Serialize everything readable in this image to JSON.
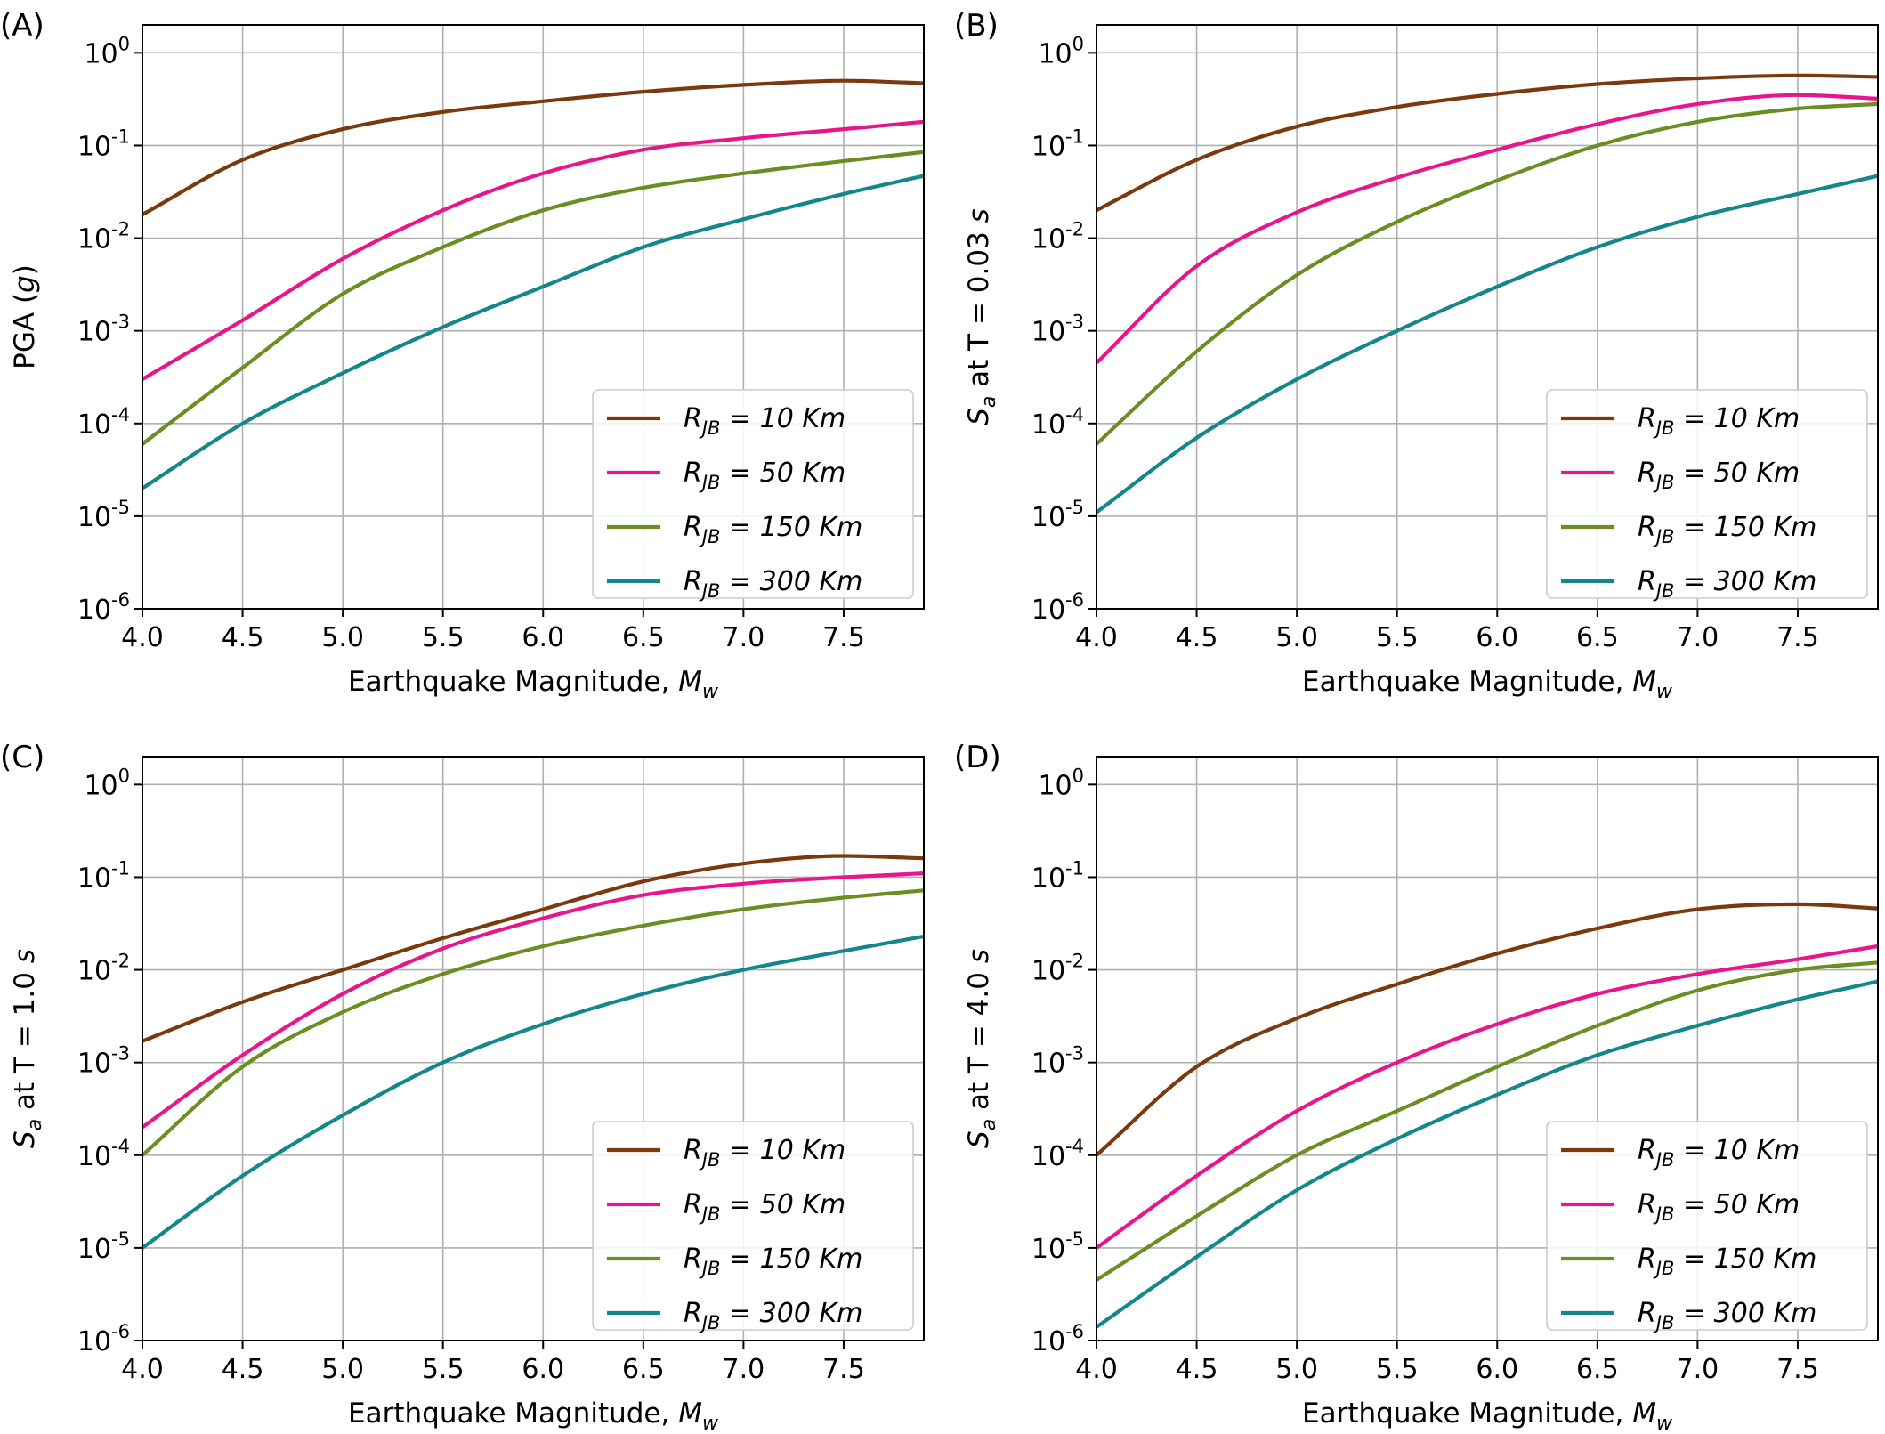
{
  "figure": {
    "xlabel_text": "Earthquake Magnitude, ",
    "xlabel_math": "M",
    "xlabel_sub": "w",
    "legend_prefix": "R",
    "legend_sub": "JB",
    "legend_unit": "Km",
    "colors": {
      "10": "#7b3a0e",
      "50": "#e8168c",
      "150": "#6b8e23",
      "300": "#13878a"
    }
  },
  "chart_data": [
    {
      "panel": "(A)",
      "type": "line",
      "ylabel_parts": [
        {
          "t": "PGA ("
        },
        {
          "t": "g",
          "it": true
        },
        {
          "t": ")"
        }
      ],
      "xlabel": "Earthquake Magnitude, Mw",
      "xlim": [
        4.0,
        7.9
      ],
      "ylim": [
        1e-06,
        2
      ],
      "yscale": "log",
      "xticks": [
        "4.0",
        "4.5",
        "5.0",
        "5.5",
        "6.0",
        "6.5",
        "7.0",
        "7.5"
      ],
      "yticks": [
        "10^0",
        "10^-1",
        "10^-2",
        "10^-3",
        "10^-4",
        "10^-5",
        "10^-6"
      ],
      "grid": true,
      "legend_placement": "lower-right",
      "x": [
        4.0,
        4.5,
        5.0,
        5.5,
        6.0,
        6.5,
        7.0,
        7.5,
        7.9
      ],
      "series": [
        {
          "name": "R_JB = 10 Km",
          "dist": "10",
          "values": [
            0.018,
            0.07,
            0.15,
            0.23,
            0.3,
            0.38,
            0.45,
            0.5,
            0.47
          ]
        },
        {
          "name": "R_JB = 50 Km",
          "dist": "50",
          "values": [
            0.0003,
            0.0013,
            0.006,
            0.02,
            0.05,
            0.09,
            0.12,
            0.15,
            0.18
          ]
        },
        {
          "name": "R_JB = 150 Km",
          "dist": "150",
          "values": [
            6e-05,
            0.0004,
            0.0025,
            0.008,
            0.02,
            0.035,
            0.05,
            0.068,
            0.085
          ]
        },
        {
          "name": "R_JB = 300 Km",
          "dist": "300",
          "values": [
            2e-05,
            0.0001,
            0.00035,
            0.0011,
            0.003,
            0.008,
            0.016,
            0.03,
            0.047
          ]
        }
      ]
    },
    {
      "panel": "(B)",
      "type": "line",
      "ylabel_parts": [
        {
          "t": "S",
          "it": true
        },
        {
          "t": "a",
          "it": true,
          "sub": true
        },
        {
          "t": " at T = 0.03 "
        },
        {
          "t": "s",
          "it": true
        }
      ],
      "xlabel": "Earthquake Magnitude, Mw",
      "xlim": [
        4.0,
        7.9
      ],
      "ylim": [
        1e-06,
        2
      ],
      "yscale": "log",
      "xticks": [
        "4.0",
        "4.5",
        "5.0",
        "5.5",
        "6.0",
        "6.5",
        "7.0",
        "7.5"
      ],
      "yticks": [
        "10^0",
        "10^-1",
        "10^-2",
        "10^-3",
        "10^-4",
        "10^-5",
        "10^-6"
      ],
      "grid": true,
      "legend_placement": "lower-right",
      "x": [
        4.0,
        4.5,
        5.0,
        5.5,
        6.0,
        6.5,
        7.0,
        7.5,
        7.9
      ],
      "series": [
        {
          "name": "R_JB = 10 Km",
          "dist": "10",
          "values": [
            0.02,
            0.07,
            0.16,
            0.26,
            0.36,
            0.46,
            0.53,
            0.57,
            0.55
          ]
        },
        {
          "name": "R_JB = 50 Km",
          "dist": "50",
          "values": [
            0.00045,
            0.005,
            0.019,
            0.045,
            0.09,
            0.17,
            0.28,
            0.35,
            0.32
          ]
        },
        {
          "name": "R_JB = 150 Km",
          "dist": "150",
          "values": [
            6e-05,
            0.0006,
            0.004,
            0.015,
            0.042,
            0.1,
            0.18,
            0.25,
            0.28
          ]
        },
        {
          "name": "R_JB = 300 Km",
          "dist": "300",
          "values": [
            1.1e-05,
            7e-05,
            0.0003,
            0.001,
            0.003,
            0.008,
            0.017,
            0.03,
            0.047
          ]
        }
      ]
    },
    {
      "panel": "(C)",
      "type": "line",
      "ylabel_parts": [
        {
          "t": "S",
          "it": true
        },
        {
          "t": "a",
          "it": true,
          "sub": true
        },
        {
          "t": " at T = 1.0 "
        },
        {
          "t": "s",
          "it": true
        }
      ],
      "xlabel": "Earthquake Magnitude, Mw",
      "xlim": [
        4.0,
        7.9
      ],
      "ylim": [
        1e-06,
        2
      ],
      "yscale": "log",
      "xticks": [
        "4.0",
        "4.5",
        "5.0",
        "5.5",
        "6.0",
        "6.5",
        "7.0",
        "7.5"
      ],
      "yticks": [
        "10^0",
        "10^-1",
        "10^-2",
        "10^-3",
        "10^-4",
        "10^-5",
        "10^-6"
      ],
      "grid": true,
      "legend_placement": "lower-right",
      "x": [
        4.0,
        4.5,
        5.0,
        5.5,
        6.0,
        6.5,
        7.0,
        7.5,
        7.9
      ],
      "series": [
        {
          "name": "R_JB = 10 Km",
          "dist": "10",
          "values": [
            0.0017,
            0.0045,
            0.01,
            0.022,
            0.045,
            0.09,
            0.14,
            0.17,
            0.16
          ]
        },
        {
          "name": "R_JB = 50 Km",
          "dist": "50",
          "values": [
            0.0002,
            0.0012,
            0.0055,
            0.017,
            0.036,
            0.064,
            0.085,
            0.1,
            0.11
          ]
        },
        {
          "name": "R_JB = 150 Km",
          "dist": "150",
          "values": [
            0.0001,
            0.0009,
            0.0035,
            0.009,
            0.018,
            0.03,
            0.045,
            0.06,
            0.072
          ]
        },
        {
          "name": "R_JB = 300 Km",
          "dist": "300",
          "values": [
            1e-05,
            6e-05,
            0.00027,
            0.001,
            0.0026,
            0.0055,
            0.01,
            0.016,
            0.023
          ]
        }
      ]
    },
    {
      "panel": "(D)",
      "type": "line",
      "ylabel_parts": [
        {
          "t": "S",
          "it": true
        },
        {
          "t": "a",
          "it": true,
          "sub": true
        },
        {
          "t": " at T = 4.0 "
        },
        {
          "t": "s",
          "it": true
        }
      ],
      "xlabel": "Earthquake Magnitude, Mw",
      "xlim": [
        4.0,
        7.9
      ],
      "ylim": [
        1e-06,
        2
      ],
      "yscale": "log",
      "xticks": [
        "4.0",
        "4.5",
        "5.0",
        "5.5",
        "6.0",
        "6.5",
        "7.0",
        "7.5"
      ],
      "yticks": [
        "10^0",
        "10^-1",
        "10^-2",
        "10^-3",
        "10^-4",
        "10^-5",
        "10^-6"
      ],
      "grid": true,
      "legend_placement": "lower-right",
      "x": [
        4.0,
        4.5,
        5.0,
        5.5,
        6.0,
        6.5,
        7.0,
        7.5,
        7.9
      ],
      "series": [
        {
          "name": "R_JB = 10 Km",
          "dist": "10",
          "values": [
            0.0001,
            0.0009,
            0.003,
            0.007,
            0.015,
            0.028,
            0.045,
            0.051,
            0.046
          ]
        },
        {
          "name": "R_JB = 50 Km",
          "dist": "50",
          "values": [
            1e-05,
            6e-05,
            0.0003,
            0.001,
            0.0026,
            0.0055,
            0.009,
            0.013,
            0.018
          ]
        },
        {
          "name": "R_JB = 150 Km",
          "dist": "150",
          "values": [
            4.5e-06,
            2.2e-05,
            0.0001,
            0.0003,
            0.0009,
            0.0025,
            0.006,
            0.01,
            0.012
          ]
        },
        {
          "name": "R_JB = 300 Km",
          "dist": "300",
          "values": [
            1.4e-06,
            8e-06,
            4.2e-05,
            0.00015,
            0.00045,
            0.0012,
            0.0025,
            0.0048,
            0.0075
          ]
        }
      ]
    }
  ]
}
